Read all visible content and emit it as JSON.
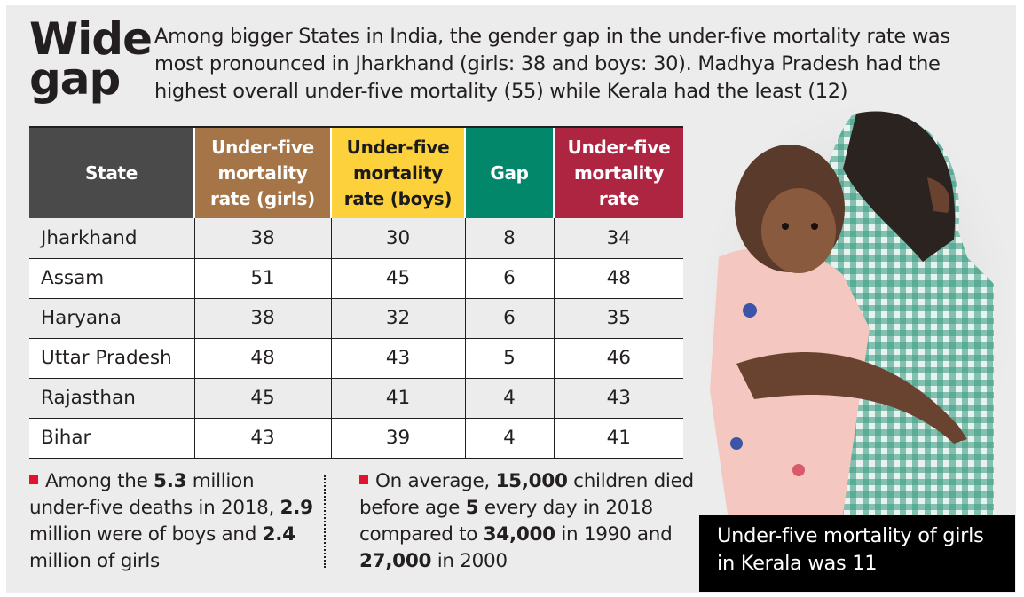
{
  "header": {
    "title_line1": "Wide",
    "title_line2": "gap",
    "intro": "Among bigger States in India, the gender gap in the under-five mortality rate was most pronounced in Jharkhand (girls: 38 and boys: 30). Madhya Pradesh had the highest overall under-five mortality (55) while Kerala had the least (12)"
  },
  "colors": {
    "state_header": "#4a4a4a",
    "girls_header": "#a57548",
    "boys_header": "#fdd13b",
    "gap_header": "#03876a",
    "overall_header": "#ae2541",
    "bullet": "#e1132f",
    "panel": "#ececec"
  },
  "chart_data": {
    "type": "table",
    "title": "Wide gap",
    "columns": [
      "State",
      "Under-five mortality rate (girls)",
      "Under-five mortality rate (boys)",
      "Gap",
      "Under-five mortality rate"
    ],
    "rows": [
      {
        "state": "Jharkhand",
        "girls": 38,
        "boys": 30,
        "gap": 8,
        "overall": 34
      },
      {
        "state": "Assam",
        "girls": 51,
        "boys": 45,
        "gap": 6,
        "overall": 48
      },
      {
        "state": "Haryana",
        "girls": 38,
        "boys": 32,
        "gap": 6,
        "overall": 35
      },
      {
        "state": "Uttar Pradesh",
        "girls": 48,
        "boys": 43,
        "gap": 5,
        "overall": 46
      },
      {
        "state": "Rajasthan",
        "girls": 45,
        "boys": 41,
        "gap": 4,
        "overall": 43
      },
      {
        "state": "Bihar",
        "girls": 43,
        "boys": 39,
        "gap": 4,
        "overall": 41
      }
    ]
  },
  "table_headers": {
    "state": [
      "State"
    ],
    "girls": [
      "Under-five",
      "mortality",
      "rate (girls)"
    ],
    "boys": [
      "Under-five",
      "mortality",
      "rate (boys)"
    ],
    "gap": [
      "Gap"
    ],
    "overall": [
      "Under-five",
      "mortality",
      "rate"
    ]
  },
  "notes": {
    "left": [
      {
        "t": "Among the ",
        "b": false
      },
      {
        "t": "5.3",
        "b": true
      },
      {
        "t": " million under-five deaths in 2018, ",
        "b": false
      },
      {
        "t": "2.9",
        "b": true
      },
      {
        "t": " million were of boys and ",
        "b": false
      },
      {
        "t": "2.4",
        "b": true
      },
      {
        "t": " million of girls",
        "b": false
      }
    ],
    "right": [
      {
        "t": "On average, ",
        "b": false
      },
      {
        "t": "15,000",
        "b": true
      },
      {
        "t": " children died before age ",
        "b": false
      },
      {
        "t": "5",
        "b": true
      },
      {
        "t": " every day in 2018 compared to ",
        "b": false
      },
      {
        "t": "34,000",
        "b": true
      },
      {
        "t": " in 1990 and ",
        "b": false
      },
      {
        "t": "27,000",
        "b": true
      },
      {
        "t": " in 2000",
        "b": false
      }
    ]
  },
  "photo": {
    "description": "Two children hugging; a younger girl in a pink dress held by an older child in a green checked dress",
    "caption": "Under-five mortality of girls in Kerala was 11"
  }
}
